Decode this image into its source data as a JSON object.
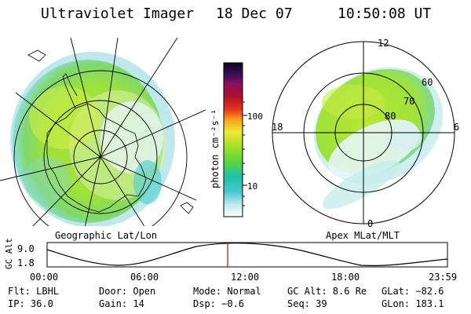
{
  "header": {
    "instrument": "Ultraviolet Imager",
    "date": "18 Dec 07",
    "time": "10:50:08 UT"
  },
  "geo_panel": {
    "label": "Geographic Lat/Lon"
  },
  "apex_panel": {
    "label": "Apex MLat/MLT",
    "mlt_labels": [
      "12",
      "18",
      "6",
      "0"
    ],
    "lat_labels": [
      "80",
      "70",
      "60"
    ]
  },
  "colorbar": {
    "unit_label": "photon cm⁻²s⁻¹",
    "ticks": [
      "100",
      "10"
    ]
  },
  "orbit_strip": {
    "axis_label": "GC Alt",
    "y_ticks": [
      "9.0",
      "1.8"
    ],
    "time_ticks": [
      "00:00",
      "06:00",
      "12:00",
      "18:00",
      "23:59"
    ],
    "current_time_fraction": 0.451
  },
  "status": {
    "row1": {
      "flt": "Flt: LBHL",
      "door": "Door: Open",
      "mode": "Mode: Normal",
      "gcalt": "GC Alt: 8.6 Re",
      "glat": "GLat: −82.6"
    },
    "row2": {
      "ip": "IP: 36.0",
      "gain": "Gain: 14",
      "dsp": "Dsp:    −0.6",
      "seq": "Seq: 39",
      "glon": "GLon: 183.1"
    }
  },
  "colors": {
    "background": "#ffffff",
    "aurora_green": "#9ee23a",
    "aurora_yellow": "#d6ef2a",
    "aurora_cyan": "#6fd8d8",
    "marker": "#e00000"
  }
}
